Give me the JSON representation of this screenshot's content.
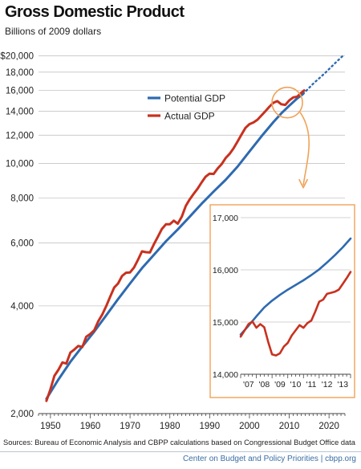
{
  "page": {
    "source": "Sources: Bureau of Economic Analysis and CBPP calculations based on Congressional Budget Office data",
    "footer": "Center on Budget and Policy Priorities | cbpp.org"
  },
  "colors": {
    "potential": "#2e6ab0",
    "actual": "#c8311f",
    "callout": "#f0a257",
    "grid": "#c4c4c4"
  },
  "chart_data": [
    {
      "type": "line",
      "title": "Gross Domestic Product",
      "subtitle": "Billions of 2009 dollars",
      "scale": "log",
      "xlim": [
        1947,
        2024
      ],
      "ylim": [
        2000,
        21000
      ],
      "x_ticks": [
        "1950",
        "1960",
        "1970",
        "1980",
        "1990",
        "2000",
        "2010",
        "2020"
      ],
      "x_tick_values": [
        1950,
        1960,
        1970,
        1980,
        1990,
        2000,
        2010,
        2020
      ],
      "y_ticks": [
        "$20,000",
        "18,000",
        "16,000",
        "14,000",
        "12,000",
        "10,000",
        "8,000",
        "6,000",
        "4,000",
        "2,000"
      ],
      "y_tick_values": [
        20000,
        18000,
        16000,
        14000,
        12000,
        10000,
        8000,
        6000,
        4000,
        2000
      ],
      "grid": true,
      "legend": "upper-center",
      "series": [
        {
          "name": "Potential GDP",
          "color": "#2e6ab0",
          "x": [
            1949,
            1952,
            1955,
            1958,
            1961,
            1964,
            1967,
            1970,
            1973,
            1976,
            1979,
            1982,
            1985,
            1988,
            1991,
            1994,
            1997,
            2000,
            2003,
            2006,
            2008,
            2010,
            2012,
            2013.5
          ],
          "y": [
            2200,
            2490,
            2790,
            3080,
            3390,
            3760,
            4180,
            4620,
            5100,
            5560,
            6060,
            6540,
            7100,
            7720,
            8350,
            9000,
            9800,
            10800,
            11900,
            13050,
            13800,
            14500,
            15200,
            15650
          ]
        },
        {
          "name": "Potential GDP (projected)",
          "color": "#2e6ab0",
          "dashed": true,
          "x": [
            2013.5,
            2016,
            2019,
            2022,
            2023.5
          ],
          "y": [
            15650,
            16700,
            17900,
            19300,
            20000
          ]
        },
        {
          "name": "Actual GDP",
          "color": "#c8311f",
          "x": [
            1949,
            1950,
            1951,
            1952,
            1953,
            1954,
            1955,
            1956,
            1957,
            1958,
            1959,
            1960,
            1961,
            1962,
            1963,
            1964,
            1965,
            1966,
            1967,
            1968,
            1969,
            1970,
            1971,
            1972,
            1973,
            1974,
            1975,
            1976,
            1977,
            1978,
            1979,
            1980,
            1981,
            1982,
            1983,
            1984,
            1985,
            1986,
            1987,
            1988,
            1989,
            1990,
            1991,
            1992,
            1993,
            1994,
            1995,
            1996,
            1997,
            1998,
            1999,
            2000,
            2001,
            2002,
            2003,
            2004,
            2005,
            2006,
            2007,
            2008,
            2009,
            2010,
            2011,
            2012,
            2013,
            2013.75
          ],
          "y": [
            2170,
            2340,
            2550,
            2650,
            2780,
            2760,
            2960,
            3020,
            3090,
            3070,
            3280,
            3340,
            3420,
            3620,
            3780,
            3990,
            4240,
            4500,
            4620,
            4850,
            4950,
            4960,
            5120,
            5380,
            5680,
            5650,
            5640,
            5950,
            6240,
            6560,
            6760,
            6760,
            6920,
            6790,
            7100,
            7610,
            7940,
            8230,
            8510,
            8860,
            9190,
            9370,
            9350,
            9680,
            9950,
            10350,
            10630,
            11020,
            11520,
            12040,
            12580,
            12880,
            13020,
            13250,
            13610,
            14000,
            14400,
            14780,
            14940,
            14640,
            14580,
            15000,
            15300,
            15380,
            15750,
            16000
          ]
        }
      ]
    },
    {
      "type": "line",
      "title": "",
      "x_ticks": [
        "'07",
        "'08",
        "'09",
        "'10",
        "'11",
        "'12",
        "'13"
      ],
      "x_tick_values": [
        2007,
        2008,
        2009,
        2010,
        2011,
        2012,
        2013
      ],
      "xlim": [
        2007,
        2014
      ],
      "y_ticks": [
        "17,000",
        "16,000",
        "15,000",
        "14,000"
      ],
      "y_tick_values": [
        17000,
        16000,
        15000,
        14000
      ],
      "ylim": [
        14000,
        17000
      ],
      "series": [
        {
          "name": "Potential GDP",
          "color": "#2e6ab0",
          "x": [
            2007,
            2007.5,
            2008,
            2008.5,
            2009,
            2009.5,
            2010,
            2010.5,
            2011,
            2011.5,
            2012,
            2012.5,
            2013,
            2013.5,
            2014
          ],
          "y": [
            14760,
            14930,
            15110,
            15280,
            15410,
            15520,
            15620,
            15710,
            15800,
            15900,
            16010,
            16140,
            16280,
            16430,
            16600
          ]
        },
        {
          "name": "Actual GDP",
          "color": "#c8311f",
          "x": [
            2007,
            2007.25,
            2007.5,
            2007.75,
            2008,
            2008.25,
            2008.5,
            2008.75,
            2009,
            2009.25,
            2009.5,
            2009.75,
            2010,
            2010.25,
            2010.5,
            2010.75,
            2011,
            2011.25,
            2011.5,
            2011.75,
            2012,
            2012.25,
            2012.5,
            2012.75,
            2013,
            2013.25,
            2013.5,
            2013.75,
            2014
          ],
          "y": [
            14720,
            14840,
            14960,
            15010,
            14890,
            14960,
            14900,
            14620,
            14380,
            14360,
            14400,
            14530,
            14600,
            14740,
            14840,
            14940,
            14890,
            14980,
            15030,
            15200,
            15390,
            15430,
            15540,
            15560,
            15580,
            15620,
            15730,
            15840,
            15960
          ]
        }
      ]
    }
  ]
}
